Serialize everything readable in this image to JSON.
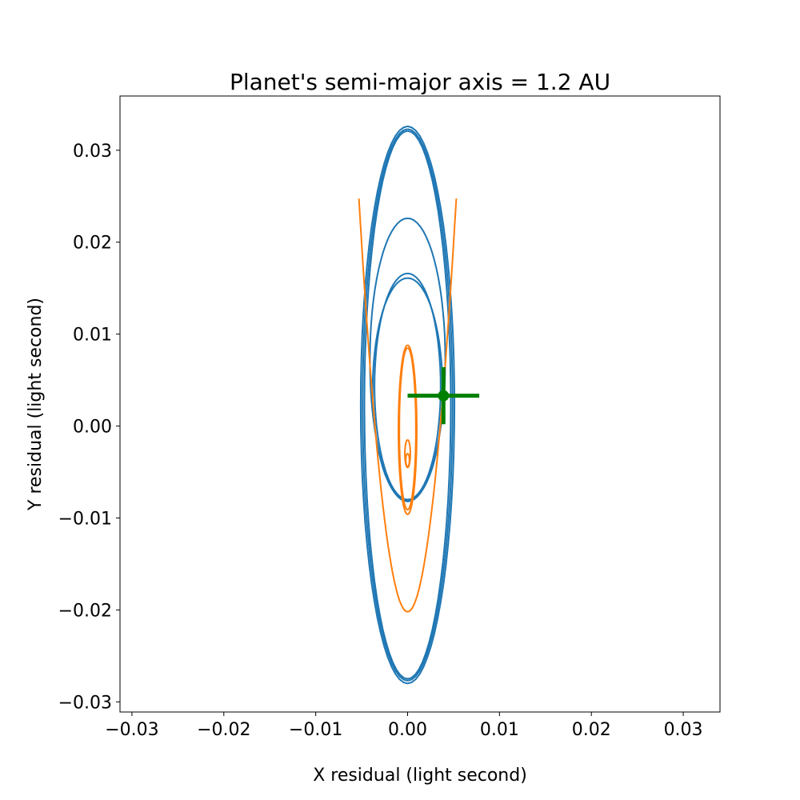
{
  "chart_data": {
    "type": "line",
    "title": "Planet's semi-major axis = 1.2 AU",
    "xlabel": "X residual (light second)",
    "ylabel": "Y residual (light second)",
    "xlim": [
      -0.0313,
      0.034
    ],
    "ylim": [
      -0.0311,
      0.0359
    ],
    "xticks": [
      {
        "value": -0.03,
        "label": "−0.03"
      },
      {
        "value": -0.02,
        "label": "−0.02"
      },
      {
        "value": -0.01,
        "label": "−0.01"
      },
      {
        "value": 0.0,
        "label": "0.00"
      },
      {
        "value": 0.01,
        "label": "0.01"
      },
      {
        "value": 0.02,
        "label": "0.02"
      },
      {
        "value": 0.03,
        "label": "0.03"
      }
    ],
    "yticks": [
      {
        "value": -0.03,
        "label": "−0.03"
      },
      {
        "value": -0.02,
        "label": "−0.02"
      },
      {
        "value": -0.01,
        "label": "−0.01"
      },
      {
        "value": 0.0,
        "label": "0.00"
      },
      {
        "value": 0.01,
        "label": "0.01"
      },
      {
        "value": 0.02,
        "label": "0.02"
      },
      {
        "value": 0.03,
        "label": "0.03"
      }
    ],
    "grid": false,
    "legend": "none",
    "series": [
      {
        "color": "#1f77b4",
        "kind": "ellipse-loops",
        "loops": [
          {
            "cx": 0.0,
            "cy": 0.0023,
            "rx": 0.0051,
            "ry": 0.0303
          },
          {
            "cx": 0.0,
            "cy": 0.0023,
            "rx": 0.0049,
            "ry": 0.03
          },
          {
            "cx": 0.0,
            "cy": 0.0023,
            "rx": 0.0047,
            "ry": 0.0298
          },
          {
            "cx": 0.0,
            "cy": 0.0072,
            "rx": 0.0041,
            "ry": 0.0154
          },
          {
            "cx": 0.0,
            "cy": 0.0043,
            "rx": 0.0036,
            "ry": 0.0123
          },
          {
            "cx": 0.0,
            "cy": 0.004,
            "rx": 0.0038,
            "ry": 0.0121
          }
        ]
      },
      {
        "color": "#ff7f0e",
        "kind": "curve",
        "parabola": {
          "a": 1600,
          "x_range": [
            -0.0053,
            0.0053
          ],
          "vertex_y": -0.0202
        },
        "loops": [
          {
            "cx": 0.0,
            "cy": -0.0004,
            "rx": 0.001,
            "ry": 0.0092
          },
          {
            "cx": 0.0,
            "cy": -0.0003,
            "rx": 0.0009,
            "ry": 0.0088
          },
          {
            "cx": 0.0,
            "cy": -0.003,
            "rx": 0.0003,
            "ry": 0.0015
          },
          {
            "cx": 0.0,
            "cy": -0.0037,
            "rx": 0.0002,
            "ry": 0.0007
          }
        ]
      },
      {
        "color": "#008000",
        "kind": "errorbar",
        "x": 0.0039,
        "y": 0.0033,
        "xerr": 0.0039,
        "yerr": 0.0031
      }
    ]
  }
}
